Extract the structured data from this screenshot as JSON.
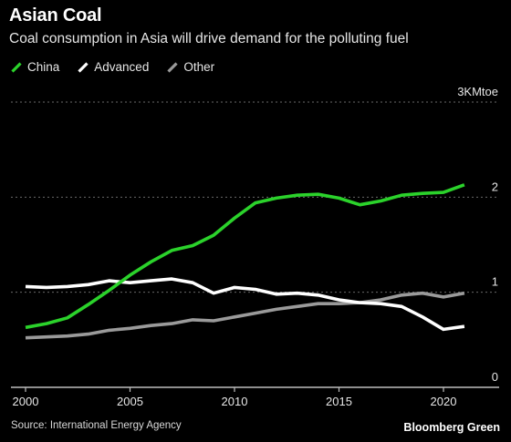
{
  "title": "Asian Coal",
  "subtitle": "Coal consumption in Asia will drive demand for the polluting fuel",
  "source": "Source: International Energy Agency",
  "brand": "Bloomberg Green",
  "colors": {
    "background": "#000000",
    "China": "#2bd22b",
    "Advanced": "#ffffff",
    "Other": "#9a9a9a",
    "grid": "#6a6a6a"
  },
  "chart_data": {
    "type": "line",
    "title": "Asian Coal",
    "ylabel_unit": "3KMtoe",
    "ylim": [
      0,
      3
    ],
    "yticks": [
      0,
      1,
      2,
      3
    ],
    "ytick_labels": [
      "0",
      "1",
      "2",
      "3KMtoe"
    ],
    "xlim": [
      2000,
      2021
    ],
    "xticks": [
      2000,
      2005,
      2010,
      2015,
      2020
    ],
    "xtick_labels": [
      "2000",
      "2005",
      "2010",
      "2015",
      "2020"
    ],
    "grid": true,
    "legend_position": "top-left",
    "x": [
      2000,
      2001,
      2002,
      2003,
      2004,
      2005,
      2006,
      2007,
      2008,
      2009,
      2010,
      2011,
      2012,
      2013,
      2014,
      2015,
      2016,
      2017,
      2018,
      2019,
      2020,
      2021
    ],
    "series": [
      {
        "name": "China",
        "values": [
          0.63,
          0.67,
          0.73,
          0.87,
          1.02,
          1.18,
          1.32,
          1.44,
          1.49,
          1.6,
          1.78,
          1.94,
          1.99,
          2.02,
          2.03,
          1.99,
          1.92,
          1.96,
          2.02,
          2.04,
          2.05,
          2.13
        ]
      },
      {
        "name": "Advanced",
        "values": [
          1.06,
          1.05,
          1.06,
          1.08,
          1.12,
          1.1,
          1.12,
          1.14,
          1.1,
          0.99,
          1.05,
          1.03,
          0.98,
          0.99,
          0.97,
          0.92,
          0.89,
          0.88,
          0.85,
          0.74,
          0.61,
          0.64
        ]
      },
      {
        "name": "Other",
        "values": [
          0.52,
          0.53,
          0.54,
          0.56,
          0.6,
          0.62,
          0.65,
          0.67,
          0.71,
          0.7,
          0.74,
          0.78,
          0.82,
          0.85,
          0.88,
          0.88,
          0.89,
          0.92,
          0.97,
          0.99,
          0.95,
          0.99
        ]
      }
    ]
  }
}
